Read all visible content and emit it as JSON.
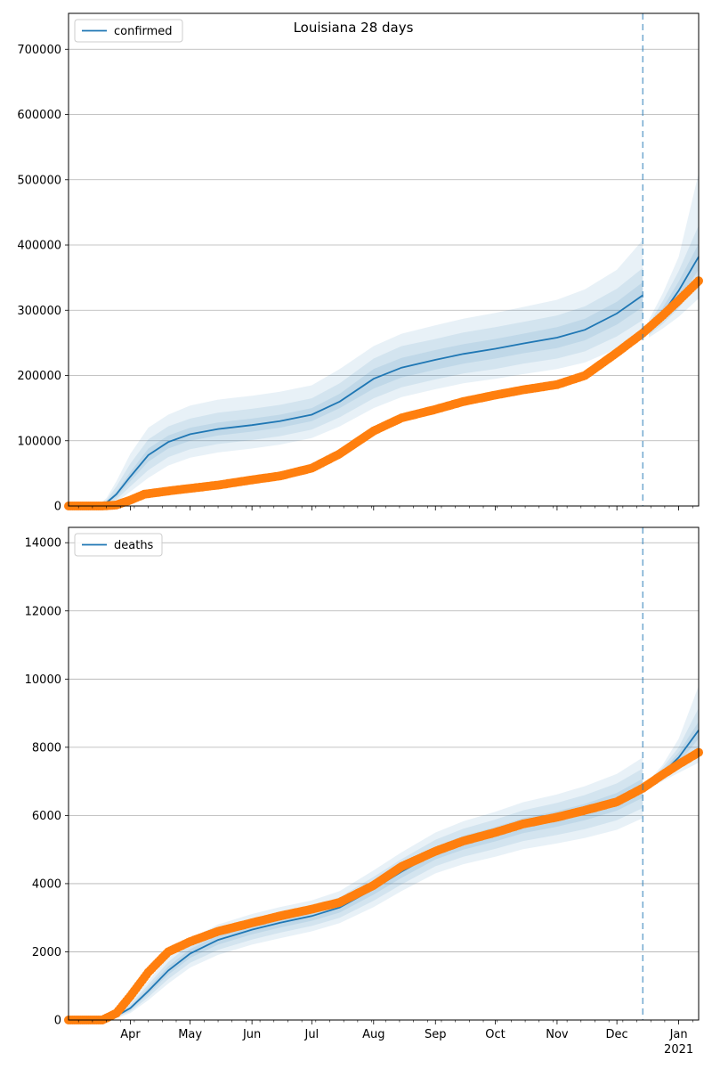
{
  "figure": {
    "title": "Louisiana 28 days"
  },
  "chart_data": [
    {
      "type": "line",
      "legend": {
        "label": "confirmed",
        "placement": "top-left"
      },
      "xlim": [
        "2020-03-01",
        "2021-01-11"
      ],
      "ylim": [
        0,
        755000
      ],
      "yticks": [
        0,
        100000,
        200000,
        300000,
        400000,
        500000,
        600000,
        700000
      ],
      "grid": "y",
      "forecast_start": "2020-12-14",
      "colors": {
        "model": "#1f77b4",
        "observed": "#ff7f0e",
        "bands": "#1f77b4"
      },
      "model": {
        "name": "confirmed",
        "x": [
          "2020-03-01",
          "2020-03-15",
          "2020-03-20",
          "2020-03-25",
          "2020-04-01",
          "2020-04-10",
          "2020-04-20",
          "2020-05-01",
          "2020-05-15",
          "2020-06-01",
          "2020-06-15",
          "2020-07-01",
          "2020-07-15",
          "2020-08-01",
          "2020-08-15",
          "2020-09-01",
          "2020-09-15",
          "2020-10-01",
          "2020-10-15",
          "2020-11-01",
          "2020-11-15",
          "2020-12-01",
          "2020-12-14"
        ],
        "median": [
          0,
          0,
          5000,
          18000,
          45000,
          78000,
          98000,
          110000,
          118000,
          124000,
          130000,
          140000,
          160000,
          195000,
          212000,
          224000,
          233000,
          241000,
          249000,
          258000,
          270000,
          295000,
          323000
        ],
        "band50": [
          [
            0,
            0,
            3000,
            14000,
            38000,
            68000,
            88000,
            100000,
            108000,
            114000,
            120000,
            130000,
            150000,
            180000,
            197000,
            209000,
            218000,
            226000,
            234000,
            242000,
            254000,
            278000,
            305000
          ],
          [
            0,
            0,
            7000,
            22000,
            52000,
            88000,
            108000,
            120000,
            128000,
            134000,
            140000,
            150000,
            172000,
            210000,
            227000,
            239000,
            248000,
            256000,
            264000,
            274000,
            287000,
            313000,
            343000
          ]
        ],
        "band80": [
          [
            0,
            0,
            2000,
            10000,
            30000,
            55000,
            75000,
            87000,
            95000,
            101000,
            107000,
            117000,
            136000,
            165000,
            182000,
            194000,
            203000,
            210000,
            218000,
            226000,
            237000,
            260000,
            285000
          ],
          [
            0,
            0,
            9000,
            30000,
            65000,
            102000,
            122000,
            134000,
            143000,
            149000,
            155000,
            165000,
            188000,
            226000,
            245000,
            256000,
            266000,
            274000,
            282000,
            292000,
            306000,
            333000,
            365000
          ]
        ],
        "band95": [
          [
            0,
            0,
            1000,
            6000,
            22000,
            43000,
            62000,
            74000,
            82000,
            88000,
            94000,
            104000,
            122000,
            150000,
            167000,
            179000,
            188000,
            195000,
            202000,
            210000,
            220000,
            241000,
            265000
          ],
          [
            0,
            0,
            12000,
            38000,
            80000,
            120000,
            140000,
            154000,
            163000,
            169000,
            175000,
            185000,
            210000,
            245000,
            264000,
            277000,
            287000,
            296000,
            305000,
            316000,
            332000,
            362000,
            408000
          ]
        ]
      },
      "forecast": {
        "x": [
          "2020-12-17",
          "2020-12-24",
          "2021-01-01",
          "2021-01-11"
        ],
        "median": [
          270000,
          295000,
          330000,
          382000
        ],
        "band50": [
          [
            266000,
            286000,
            316000,
            362000
          ],
          [
            274000,
            304000,
            344000,
            402000
          ]
        ],
        "band80": [
          [
            262000,
            279000,
            303000,
            342000
          ],
          [
            279000,
            314000,
            360000,
            430000
          ]
        ],
        "band95": [
          [
            258000,
            272000,
            290000,
            318000
          ],
          [
            285000,
            326000,
            382000,
            510000
          ]
        ]
      },
      "observed": {
        "name": "observed",
        "x": [
          "2020-03-01",
          "2020-03-18",
          "2020-03-25",
          "2020-04-01",
          "2020-04-08",
          "2020-04-20",
          "2020-05-01",
          "2020-05-15",
          "2020-06-01",
          "2020-06-15",
          "2020-07-01",
          "2020-07-15",
          "2020-08-01",
          "2020-08-15",
          "2020-09-01",
          "2020-09-15",
          "2020-10-01",
          "2020-10-15",
          "2020-11-01",
          "2020-11-15",
          "2020-12-01",
          "2020-12-14",
          "2020-12-24",
          "2021-01-01",
          "2021-01-11"
        ],
        "y": [
          0,
          0,
          1500,
          9000,
          18000,
          23000,
          27000,
          32000,
          40000,
          46000,
          58000,
          80000,
          115000,
          135000,
          148000,
          160000,
          170000,
          178000,
          186000,
          200000,
          235000,
          265000,
          292000,
          315000,
          345000
        ]
      }
    },
    {
      "type": "line",
      "legend": {
        "label": "deaths",
        "placement": "top-left"
      },
      "xlim": [
        "2020-03-01",
        "2021-01-11"
      ],
      "ylim": [
        0,
        14450
      ],
      "yticks": [
        0,
        2000,
        4000,
        6000,
        8000,
        10000,
        12000,
        14000
      ],
      "grid": "y",
      "forecast_start": "2020-12-14",
      "xticks": [
        {
          "date": "2020-04-01",
          "label": "Apr"
        },
        {
          "date": "2020-05-01",
          "label": "May"
        },
        {
          "date": "2020-06-01",
          "label": "Jun"
        },
        {
          "date": "2020-07-01",
          "label": "Jul"
        },
        {
          "date": "2020-08-01",
          "label": "Aug"
        },
        {
          "date": "2020-09-01",
          "label": "Sep"
        },
        {
          "date": "2020-10-01",
          "label": "Oct"
        },
        {
          "date": "2020-11-01",
          "label": "Nov"
        },
        {
          "date": "2020-12-01",
          "label": "Dec"
        },
        {
          "date": "2021-01-01",
          "label": "Jan",
          "sublabel": "2021"
        }
      ],
      "colors": {
        "model": "#1f77b4",
        "observed": "#ff7f0e",
        "bands": "#1f77b4"
      },
      "model": {
        "name": "deaths",
        "x": [
          "2020-03-01",
          "2020-03-20",
          "2020-03-25",
          "2020-04-01",
          "2020-04-10",
          "2020-04-20",
          "2020-05-01",
          "2020-05-15",
          "2020-06-01",
          "2020-06-15",
          "2020-07-01",
          "2020-07-15",
          "2020-08-01",
          "2020-08-15",
          "2020-09-01",
          "2020-09-15",
          "2020-10-01",
          "2020-10-15",
          "2020-11-01",
          "2020-11-15",
          "2020-12-01",
          "2020-12-14"
        ],
        "median": [
          0,
          30,
          120,
          350,
          850,
          1450,
          1950,
          2350,
          2650,
          2850,
          3050,
          3300,
          3850,
          4350,
          4900,
          5200,
          5450,
          5700,
          5900,
          6100,
          6400,
          6800
        ],
        "band50": [
          [
            0,
            20,
            90,
            300,
            760,
            1330,
            1820,
            2210,
            2510,
            2710,
            2910,
            3150,
            3680,
            4170,
            4710,
            5000,
            5240,
            5480,
            5670,
            5860,
            6140,
            6520
          ],
          [
            0,
            40,
            150,
            400,
            940,
            1570,
            2080,
            2490,
            2790,
            2990,
            3190,
            3450,
            4020,
            4530,
            5090,
            5400,
            5660,
            5920,
            6130,
            6340,
            6660,
            7080
          ]
        ],
        "band80": [
          [
            0,
            15,
            70,
            250,
            670,
            1200,
            1680,
            2060,
            2360,
            2560,
            2760,
            3000,
            3500,
            3980,
            4510,
            4790,
            5020,
            5250,
            5430,
            5600,
            5860,
            6220
          ],
          [
            0,
            50,
            180,
            460,
            1040,
            1700,
            2220,
            2640,
            2940,
            3140,
            3340,
            3600,
            4200,
            4720,
            5290,
            5610,
            5880,
            6150,
            6370,
            6600,
            6940,
            7380
          ]
        ],
        "band95": [
          [
            0,
            10,
            50,
            200,
            580,
            1070,
            1540,
            1910,
            2210,
            2400,
            2600,
            2840,
            3310,
            3780,
            4300,
            4570,
            4790,
            5010,
            5180,
            5340,
            5580,
            5920
          ],
          [
            0,
            60,
            220,
            520,
            1150,
            1850,
            2380,
            2800,
            3110,
            3310,
            3510,
            3780,
            4390,
            4920,
            5500,
            5830,
            6110,
            6390,
            6620,
            6860,
            7220,
            7700
          ]
        ]
      },
      "forecast": {
        "x": [
          "2020-12-17",
          "2020-12-24",
          "2021-01-01",
          "2021-01-11"
        ],
        "median": [
          6900,
          7250,
          7700,
          8500
        ],
        "band50": [
          [
            6860,
            7170,
            7550,
            8250
          ],
          [
            6940,
            7330,
            7850,
            8750
          ]
        ],
        "band80": [
          [
            6820,
            7090,
            7400,
            7900
          ],
          [
            6980,
            7410,
            8000,
            9150
          ]
        ],
        "band95": [
          [
            6780,
            7010,
            7250,
            7550
          ],
          [
            7020,
            7490,
            8250,
            9800
          ]
        ]
      },
      "observed": {
        "name": "observed",
        "x": [
          "2020-03-01",
          "2020-03-18",
          "2020-03-25",
          "2020-04-01",
          "2020-04-10",
          "2020-04-20",
          "2020-05-01",
          "2020-05-15",
          "2020-06-01",
          "2020-06-15",
          "2020-07-01",
          "2020-07-15",
          "2020-08-01",
          "2020-08-15",
          "2020-09-01",
          "2020-09-15",
          "2020-10-01",
          "2020-10-15",
          "2020-11-01",
          "2020-11-15",
          "2020-12-01",
          "2020-12-14",
          "2020-12-24",
          "2021-01-01",
          "2021-01-11"
        ],
        "y": [
          0,
          0,
          200,
          700,
          1400,
          2000,
          2300,
          2600,
          2850,
          3050,
          3250,
          3450,
          3950,
          4500,
          4950,
          5250,
          5500,
          5750,
          5950,
          6150,
          6400,
          6800,
          7200,
          7500,
          7850
        ]
      }
    }
  ]
}
